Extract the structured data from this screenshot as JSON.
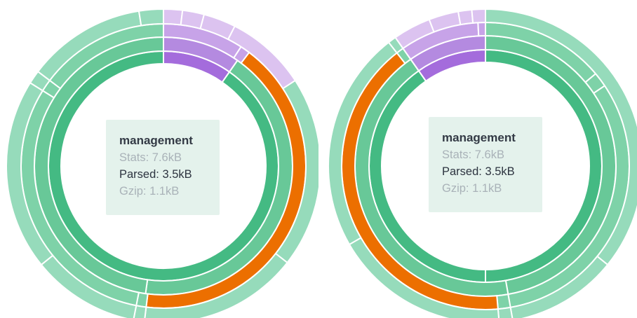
{
  "colors": {
    "green_1": "#44ba83",
    "green_2": "#68c898",
    "green_3": "#7ed2a8",
    "green_4": "#96dbbb",
    "purple_1": "#a46cdc",
    "purple_2": "#b48ae0",
    "purple_3": "#c7a3e8",
    "purple_4": "#dcc3f0",
    "highlight": "#ec6f00"
  },
  "chart_data": [
    {
      "type": "sunburst",
      "tooltip": {
        "title": "management",
        "stats": "Stats: 7.6kB",
        "parsed": "Parsed: 3.5kB",
        "gzip": "Gzip: 1.1kB"
      },
      "rings": [
        {
          "level": 1,
          "segments": [
            {
              "from": 0,
              "to": 0.0972,
              "color": "purple_1"
            },
            {
              "from": 0.0972,
              "to": 1,
              "color": "green_1"
            }
          ]
        },
        {
          "level": 2,
          "segments": [
            {
              "from": 0,
              "to": 0.0972,
              "color": "purple_2"
            },
            {
              "from": 0.0972,
              "to": 0.5222,
              "color": "green_2"
            },
            {
              "from": 0.5222,
              "to": 1,
              "color": "green_2"
            }
          ]
        },
        {
          "level": 3,
          "segments": [
            {
              "from": 0,
              "to": 0.0917,
              "color": "purple_3"
            },
            {
              "from": 0.0917,
              "to": 0.1028,
              "color": "purple_3"
            },
            {
              "from": 0.1028,
              "to": 0.5194,
              "color": "highlight"
            },
            {
              "from": 0.5194,
              "to": 0.5306,
              "color": "green_3"
            },
            {
              "from": 0.5306,
              "to": 0.8389,
              "color": "green_3"
            },
            {
              "from": 0.8389,
              "to": 0.8528,
              "color": "green_3"
            },
            {
              "from": 0.8528,
              "to": 1,
              "color": "green_3"
            }
          ]
        },
        {
          "level": 4,
          "segments": [
            {
              "from": 0,
              "to": 0.0194,
              "color": "purple_4"
            },
            {
              "from": 0.0194,
              "to": 0.0417,
              "color": "purple_4"
            },
            {
              "from": 0.0417,
              "to": 0.075,
              "color": "purple_4"
            },
            {
              "from": 0.075,
              "to": 0.1583,
              "color": "purple_4"
            },
            {
              "from": 0.1583,
              "to": 0.3556,
              "color": "green_4"
            },
            {
              "from": 0.3556,
              "to": 0.5194,
              "color": "green_4"
            },
            {
              "from": 0.5194,
              "to": 0.5306,
              "color": "green_4"
            },
            {
              "from": 0.5306,
              "to": 0.6417,
              "color": "green_4"
            },
            {
              "from": 0.6417,
              "to": 0.8389,
              "color": "green_4"
            },
            {
              "from": 0.8389,
              "to": 0.8528,
              "color": "green_4"
            },
            {
              "from": 0.8528,
              "to": 0.975,
              "color": "green_4"
            },
            {
              "from": 0.975,
              "to": 1,
              "color": "green_4"
            }
          ]
        }
      ]
    },
    {
      "type": "sunburst",
      "tooltip": {
        "title": "management",
        "stats": "Stats: 7.6kB",
        "parsed": "Parsed: 3.5kB",
        "gzip": "Gzip: 1.1kB"
      },
      "rings": [
        {
          "level": 1,
          "segments": [
            {
              "from": 0,
              "to": 0.5,
              "color": "green_1"
            },
            {
              "from": 0.5,
              "to": 0.9028,
              "color": "green_1"
            },
            {
              "from": 0.9028,
              "to": 1,
              "color": "purple_1"
            }
          ]
        },
        {
          "level": 2,
          "segments": [
            {
              "from": 0,
              "to": 0.4722,
              "color": "green_2"
            },
            {
              "from": 0.4722,
              "to": 0.9028,
              "color": "green_2"
            },
            {
              "from": 0.9028,
              "to": 1,
              "color": "purple_2"
            }
          ]
        },
        {
          "level": 3,
          "segments": [
            {
              "from": 0,
              "to": 0.1389,
              "color": "green_3"
            },
            {
              "from": 0.1389,
              "to": 0.1556,
              "color": "green_3"
            },
            {
              "from": 0.1556,
              "to": 0.4722,
              "color": "green_3"
            },
            {
              "from": 0.4722,
              "to": 0.4861,
              "color": "green_3"
            },
            {
              "from": 0.4861,
              "to": 0.8944,
              "color": "highlight"
            },
            {
              "from": 0.8944,
              "to": 0.9028,
              "color": "green_3"
            },
            {
              "from": 0.9028,
              "to": 0.9917,
              "color": "purple_3"
            },
            {
              "from": 0.9917,
              "to": 1,
              "color": "purple_3"
            }
          ]
        },
        {
          "level": 4,
          "segments": [
            {
              "from": 0,
              "to": 0.3583,
              "color": "green_4"
            },
            {
              "from": 0.3583,
              "to": 0.4722,
              "color": "green_4"
            },
            {
              "from": 0.4722,
              "to": 0.4861,
              "color": "green_4"
            },
            {
              "from": 0.4861,
              "to": 0.6667,
              "color": "green_4"
            },
            {
              "from": 0.6667,
              "to": 0.8944,
              "color": "green_4"
            },
            {
              "from": 0.8944,
              "to": 0.9028,
              "color": "green_4"
            },
            {
              "from": 0.9028,
              "to": 0.9417,
              "color": "purple_4"
            },
            {
              "from": 0.9417,
              "to": 0.9722,
              "color": "purple_4"
            },
            {
              "from": 0.9722,
              "to": 0.9861,
              "color": "purple_4"
            },
            {
              "from": 0.9861,
              "to": 1,
              "color": "purple_4"
            }
          ]
        }
      ]
    }
  ]
}
